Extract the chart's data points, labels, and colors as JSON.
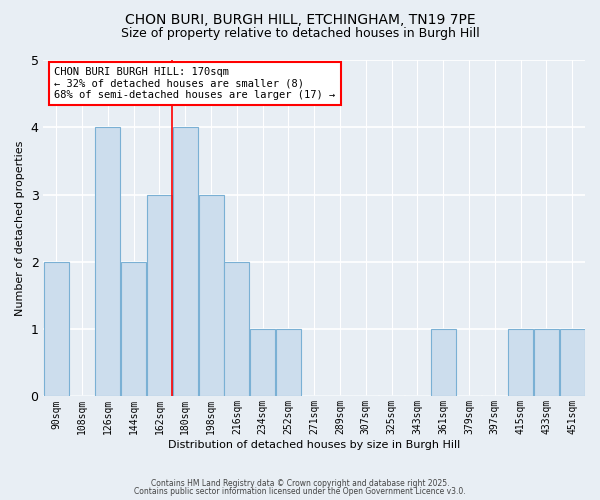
{
  "title_line1": "CHON BURI, BURGH HILL, ETCHINGHAM, TN19 7PE",
  "title_line2": "Size of property relative to detached houses in Burgh Hill",
  "xlabel": "Distribution of detached houses by size in Burgh Hill",
  "ylabel": "Number of detached properties",
  "categories": [
    "90sqm",
    "108sqm",
    "126sqm",
    "144sqm",
    "162sqm",
    "180sqm",
    "198sqm",
    "216sqm",
    "234sqm",
    "252sqm",
    "271sqm",
    "289sqm",
    "307sqm",
    "325sqm",
    "343sqm",
    "361sqm",
    "379sqm",
    "397sqm",
    "415sqm",
    "433sqm",
    "451sqm"
  ],
  "values": [
    2,
    0,
    4,
    2,
    3,
    4,
    3,
    2,
    1,
    1,
    0,
    0,
    0,
    0,
    0,
    1,
    0,
    0,
    1,
    1,
    1
  ],
  "bar_color": "#ccdded",
  "bar_edge_color": "#7ab0d4",
  "bar_width": 0.97,
  "ylim": [
    0,
    5
  ],
  "yticks": [
    0,
    1,
    2,
    3,
    4,
    5
  ],
  "red_line_x": 4.5,
  "annotation_title": "CHON BURI BURGH HILL: 170sqm",
  "annotation_line2": "← 32% of detached houses are smaller (8)",
  "annotation_line3": "68% of semi-detached houses are larger (17) →",
  "footnote_line1": "Contains HM Land Registry data © Crown copyright and database right 2025.",
  "footnote_line2": "Contains public sector information licensed under the Open Government Licence v3.0.",
  "background_color": "#e8eef4",
  "plot_background_color": "#e8eef4",
  "grid_color": "#ffffff",
  "title_fontsize": 10,
  "subtitle_fontsize": 9,
  "tick_fontsize": 7,
  "axis_label_fontsize": 8
}
